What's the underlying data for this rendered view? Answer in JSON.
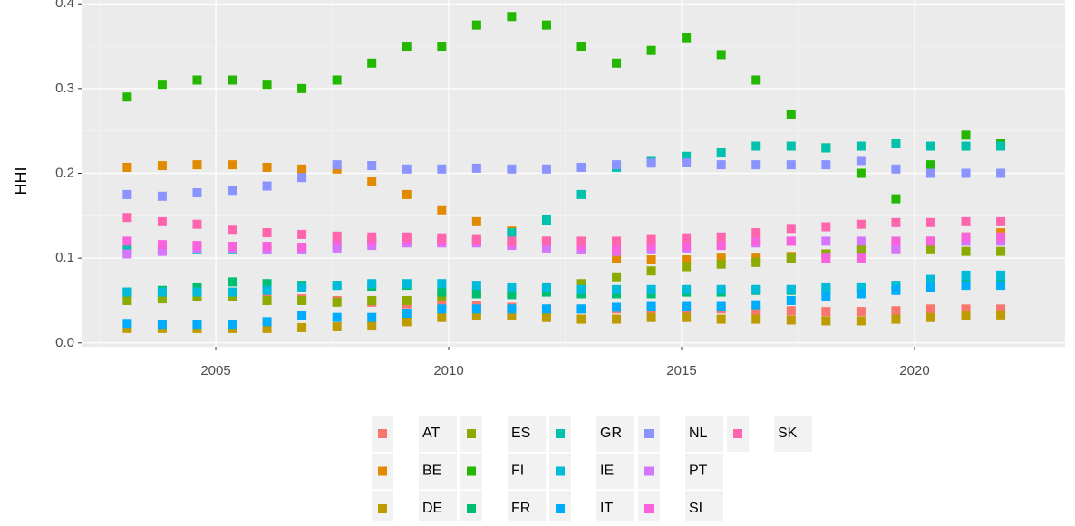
{
  "chart_data": {
    "type": "scatter",
    "y_label": "HHI",
    "x": [
      2003.1,
      2003.85,
      2004.6,
      2005.35,
      2006.1,
      2006.85,
      2007.6,
      2008.35,
      2009.1,
      2009.85,
      2010.6,
      2011.35,
      2012.1,
      2012.85,
      2013.6,
      2014.35,
      2015.1,
      2015.85,
      2016.6,
      2017.35,
      2018.1,
      2018.85,
      2019.6,
      2020.35,
      2021.1,
      2021.85
    ],
    "xlim": [
      2002.12,
      2023.23
    ],
    "xticks": [
      2005,
      2010,
      2015,
      2020
    ],
    "ylim": [
      -0.0045,
      0.4045
    ],
    "yticks": [
      {
        "value": 0,
        "label": "0.0"
      },
      0.1,
      0.2,
      0.3,
      0.4
    ],
    "grid": true,
    "series": [
      {
        "name": "AT",
        "color": "#F8766D",
        "values": [
          0.058,
          0.055,
          0.055,
          0.055,
          0.055,
          0.052,
          0.05,
          0.048,
          0.046,
          0.045,
          0.044,
          0.042,
          0.04,
          0.04,
          0.04,
          0.04,
          0.04,
          0.04,
          0.038,
          0.038,
          0.037,
          0.037,
          0.038,
          0.04,
          0.04,
          0.04
        ]
      },
      {
        "name": "BE",
        "color": "#E18A00",
        "values": [
          0.207,
          0.209,
          0.21,
          0.21,
          0.207,
          0.205,
          0.205,
          0.19,
          0.175,
          0.157,
          0.143,
          0.132,
          0.12,
          0.11,
          0.1,
          0.098,
          0.098,
          0.1,
          0.1,
          0.102,
          0.105,
          0.11,
          0.115,
          0.12,
          0.125,
          0.13
        ]
      },
      {
        "name": "DE",
        "color": "#BE9C00",
        "values": [
          0.017,
          0.017,
          0.017,
          0.017,
          0.017,
          0.018,
          0.019,
          0.02,
          0.025,
          0.03,
          0.032,
          0.032,
          0.03,
          0.028,
          0.028,
          0.03,
          0.03,
          0.028,
          0.028,
          0.027,
          0.026,
          0.026,
          0.028,
          0.03,
          0.032,
          0.033
        ]
      },
      {
        "name": "ES",
        "color": "#8CAB00",
        "values": [
          0.05,
          0.052,
          0.055,
          0.055,
          0.05,
          0.05,
          0.048,
          0.05,
          0.05,
          0.055,
          0.058,
          0.06,
          0.065,
          0.07,
          0.078,
          0.085,
          0.09,
          0.093,
          0.095,
          0.1,
          0.105,
          0.11,
          0.112,
          0.11,
          0.108,
          0.108
        ]
      },
      {
        "name": "FI",
        "color": "#24B700",
        "values": [
          0.29,
          0.305,
          0.31,
          0.31,
          0.305,
          0.3,
          0.31,
          0.33,
          0.35,
          0.35,
          0.375,
          0.385,
          0.375,
          0.35,
          0.33,
          0.345,
          0.36,
          0.34,
          0.31,
          0.27,
          0.23,
          0.2,
          0.17,
          0.21,
          0.245,
          0.235
        ]
      },
      {
        "name": "FR",
        "color": "#00BE70",
        "values": [
          0.06,
          0.062,
          0.065,
          0.072,
          0.07,
          0.068,
          0.068,
          0.067,
          0.068,
          0.06,
          0.058,
          0.057,
          0.06,
          0.058,
          0.058,
          0.058,
          0.06,
          0.06,
          0.062,
          0.062,
          0.063,
          0.065,
          0.065,
          0.067,
          0.07,
          0.072
        ]
      },
      {
        "name": "GR",
        "color": "#00C1AB",
        "values": [
          0.11,
          0.11,
          0.11,
          0.11,
          0.11,
          0.11,
          0.115,
          0.12,
          0.12,
          0.12,
          0.12,
          0.13,
          0.145,
          0.175,
          0.207,
          0.215,
          0.22,
          0.225,
          0.232,
          0.232,
          0.23,
          0.232,
          0.235,
          0.232,
          0.232,
          0.232
        ]
      },
      {
        "name": "IE",
        "color": "#00BBDA",
        "values": [
          0.06,
          0.06,
          0.06,
          0.06,
          0.062,
          0.065,
          0.068,
          0.07,
          0.07,
          0.07,
          0.068,
          0.065,
          0.065,
          0.063,
          0.063,
          0.063,
          0.063,
          0.063,
          0.063,
          0.063,
          0.065,
          0.065,
          0.068,
          0.075,
          0.08,
          0.08
        ]
      },
      {
        "name": "IT",
        "color": "#00ACFC",
        "values": [
          0.023,
          0.022,
          0.022,
          0.022,
          0.025,
          0.032,
          0.03,
          0.03,
          0.035,
          0.04,
          0.04,
          0.04,
          0.04,
          0.04,
          0.042,
          0.043,
          0.043,
          0.043,
          0.045,
          0.05,
          0.055,
          0.058,
          0.062,
          0.065,
          0.068,
          0.068
        ]
      },
      {
        "name": "NL",
        "color": "#8B93FF",
        "values": [
          0.175,
          0.173,
          0.177,
          0.18,
          0.185,
          0.195,
          0.21,
          0.209,
          0.205,
          0.205,
          0.206,
          0.205,
          0.205,
          0.207,
          0.21,
          0.212,
          0.213,
          0.21,
          0.21,
          0.21,
          0.21,
          0.215,
          0.205,
          0.2,
          0.2,
          0.2
        ]
      },
      {
        "name": "PT",
        "color": "#D575FE",
        "values": [
          0.105,
          0.108,
          0.112,
          0.112,
          0.11,
          0.11,
          0.112,
          0.115,
          0.118,
          0.118,
          0.118,
          0.115,
          0.112,
          0.11,
          0.108,
          0.11,
          0.112,
          0.115,
          0.118,
          0.12,
          0.12,
          0.12,
          0.11,
          0.12,
          0.12,
          0.12
        ]
      },
      {
        "name": "SI",
        "color": "#F962DD",
        "values": [
          0.12,
          0.116,
          0.115,
          0.114,
          0.114,
          0.113,
          0.12,
          0.12,
          0.122,
          0.12,
          0.12,
          0.118,
          0.12,
          0.115,
          0.11,
          0.115,
          0.115,
          0.115,
          0.12,
          0.12,
          0.1,
          0.1,
          0.12,
          0.12,
          0.125,
          0.125
        ]
      },
      {
        "name": "SK",
        "color": "#FF65AC",
        "values": [
          0.148,
          0.143,
          0.14,
          0.133,
          0.13,
          0.128,
          0.126,
          0.125,
          0.125,
          0.124,
          0.122,
          0.12,
          0.12,
          0.12,
          0.12,
          0.122,
          0.124,
          0.125,
          0.13,
          0.135,
          0.137,
          0.14,
          0.142,
          0.142,
          0.143,
          0.143
        ]
      }
    ]
  }
}
